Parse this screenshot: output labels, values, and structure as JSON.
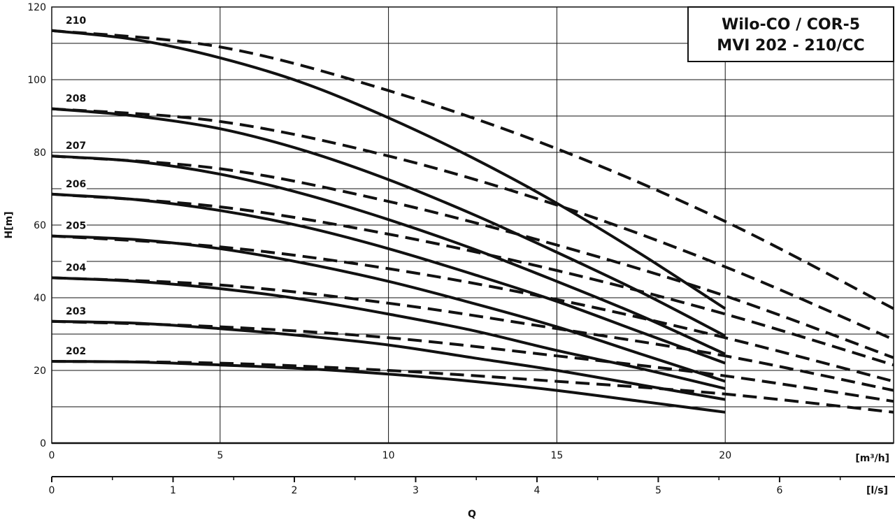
{
  "chart_data": {
    "type": "line",
    "title": [
      "Wilo-CO / COR-5",
      "MVI 202 - 210/CC"
    ],
    "ylabel": "H[m]",
    "xlabel": "Q",
    "x_unit_m3h": "[m³/h]",
    "x_unit_ls": "[l/s]",
    "x_range_m3h": [
      0,
      25
    ],
    "x_range_ls": [
      0,
      6.94
    ],
    "ylim": [
      0,
      120
    ],
    "y_ticks": [
      0,
      20,
      40,
      60,
      80,
      100,
      120
    ],
    "x_ticks_m3h": [
      0,
      5,
      10,
      15,
      20
    ],
    "x_ticks_ls": [
      0,
      1,
      2,
      3,
      4,
      5,
      6
    ],
    "grid": true,
    "series": [
      {
        "name": "210",
        "solid": {
          "x": [
            0,
            2.5,
            5,
            7.5,
            10,
            12.5,
            15,
            17.5,
            20
          ],
          "y": [
            113.5,
            111,
            106,
            99,
            89.5,
            78.5,
            66,
            52,
            37
          ]
        },
        "dashed": {
          "x": [
            0,
            5,
            10,
            15,
            20,
            25
          ],
          "y": [
            113.5,
            109,
            97,
            81,
            61,
            37
          ]
        }
      },
      {
        "name": "208",
        "solid": {
          "x": [
            0,
            2.5,
            5,
            7.5,
            10,
            12.5,
            15,
            17.5,
            20
          ],
          "y": [
            92,
            90,
            86.5,
            80.5,
            72.5,
            63,
            52.5,
            41.5,
            29.5
          ]
        },
        "dashed": {
          "x": [
            0,
            5,
            10,
            15,
            20,
            25
          ],
          "y": [
            92,
            88.5,
            79,
            65.5,
            48.5,
            28.5
          ]
        }
      },
      {
        "name": "207",
        "solid": {
          "x": [
            0,
            2.5,
            5,
            7.5,
            10,
            12.5,
            15,
            17.5,
            20
          ],
          "y": [
            79,
            77.5,
            74,
            68.5,
            61.5,
            53.5,
            44.5,
            35,
            24.5
          ]
        },
        "dashed": {
          "x": [
            0,
            5,
            10,
            15,
            20,
            25
          ],
          "y": [
            79,
            75.5,
            66.5,
            54.5,
            40.5,
            23.5
          ]
        }
      },
      {
        "name": "206",
        "solid": {
          "x": [
            0,
            2.5,
            5,
            7.5,
            10,
            12.5,
            15,
            17.5,
            20
          ],
          "y": [
            68.5,
            67,
            64,
            59.5,
            53.5,
            46.5,
            39,
            30.5,
            22
          ]
        },
        "dashed": {
          "x": [
            0,
            5,
            10,
            15,
            20,
            25
          ],
          "y": [
            68.5,
            65,
            57.5,
            47.5,
            35.5,
            21.5
          ]
        }
      },
      {
        "name": "205",
        "solid": {
          "x": [
            0,
            2.5,
            5,
            7.5,
            10,
            12.5,
            15,
            17.5,
            20
          ],
          "y": [
            57,
            56,
            53.5,
            49.5,
            44.5,
            38.5,
            32,
            24.5,
            17
          ]
        },
        "dashed": {
          "x": [
            0,
            5,
            10,
            15,
            20,
            25
          ],
          "y": [
            57,
            54,
            48,
            39.5,
            29,
            17
          ]
        }
      },
      {
        "name": "204",
        "solid": {
          "x": [
            0,
            2.5,
            5,
            7.5,
            10,
            12.5,
            15,
            17.5,
            20
          ],
          "y": [
            45.5,
            44.5,
            42.5,
            39.5,
            35.5,
            31,
            25.5,
            20.5,
            15
          ]
        },
        "dashed": {
          "x": [
            0,
            5,
            10,
            15,
            20,
            25
          ],
          "y": [
            45.5,
            43.5,
            38.5,
            31.5,
            24,
            14.5
          ]
        }
      },
      {
        "name": "203",
        "solid": {
          "x": [
            0,
            2.5,
            5,
            7.5,
            10,
            12.5,
            15,
            17.5,
            20
          ],
          "y": [
            33.5,
            33,
            31.5,
            29.5,
            27,
            23.5,
            20,
            16,
            12
          ]
        },
        "dashed": {
          "x": [
            0,
            5,
            10,
            15,
            20,
            25
          ],
          "y": [
            33.5,
            32,
            29,
            24,
            18.5,
            11.5
          ]
        }
      },
      {
        "name": "202",
        "solid": {
          "x": [
            0,
            2.5,
            5,
            7.5,
            10,
            12.5,
            15,
            17.5,
            20
          ],
          "y": [
            22.5,
            22.3,
            21.5,
            20.5,
            19,
            17,
            14.5,
            11.5,
            8.5
          ]
        },
        "dashed": {
          "x": [
            0,
            5,
            10,
            15,
            20,
            25
          ],
          "y": [
            22.5,
            22,
            20,
            17,
            13.5,
            8.5
          ]
        }
      }
    ]
  }
}
